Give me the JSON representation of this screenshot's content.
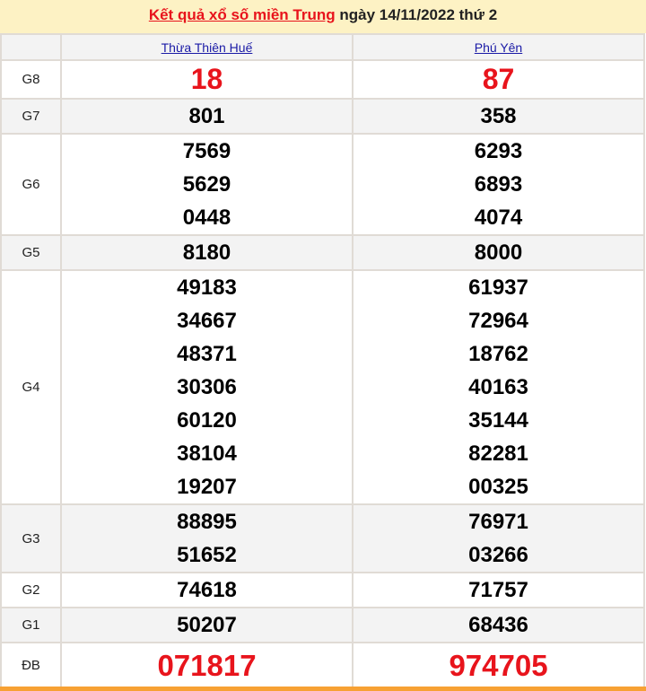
{
  "header": {
    "link_text": "Kết quả xổ số miền Trung",
    "date_text": " ngày 14/11/2022 thứ 2"
  },
  "columns": [
    "Thừa Thiên Huế",
    "Phú Yên"
  ],
  "rows": [
    {
      "label": "G8",
      "values": [
        [
          "18"
        ],
        [
          "87"
        ]
      ]
    },
    {
      "label": "G7",
      "values": [
        [
          "801"
        ],
        [
          "358"
        ]
      ]
    },
    {
      "label": "G6",
      "values": [
        [
          "7569",
          "5629",
          "0448"
        ],
        [
          "6293",
          "6893",
          "4074"
        ]
      ]
    },
    {
      "label": "G5",
      "values": [
        [
          "8180"
        ],
        [
          "8000"
        ]
      ]
    },
    {
      "label": "G4",
      "values": [
        [
          "49183",
          "34667",
          "48371",
          "30306",
          "60120",
          "38104",
          "19207"
        ],
        [
          "61937",
          "72964",
          "18762",
          "40163",
          "35144",
          "82281",
          "00325"
        ]
      ]
    },
    {
      "label": "G3",
      "values": [
        [
          "88895",
          "51652"
        ],
        [
          "76971",
          "03266"
        ]
      ]
    },
    {
      "label": "G2",
      "values": [
        [
          "74618"
        ],
        [
          "71757"
        ]
      ]
    },
    {
      "label": "G1",
      "values": [
        [
          "50207"
        ],
        [
          "68436"
        ]
      ]
    },
    {
      "label": "ĐB",
      "values": [
        [
          "071817"
        ],
        [
          "974705"
        ]
      ]
    }
  ],
  "colors": {
    "accent_red": "#e8141c",
    "header_bg": "#fdf2c4",
    "link_blue": "#1a1aa6",
    "footer_orange": "#f7a133"
  }
}
